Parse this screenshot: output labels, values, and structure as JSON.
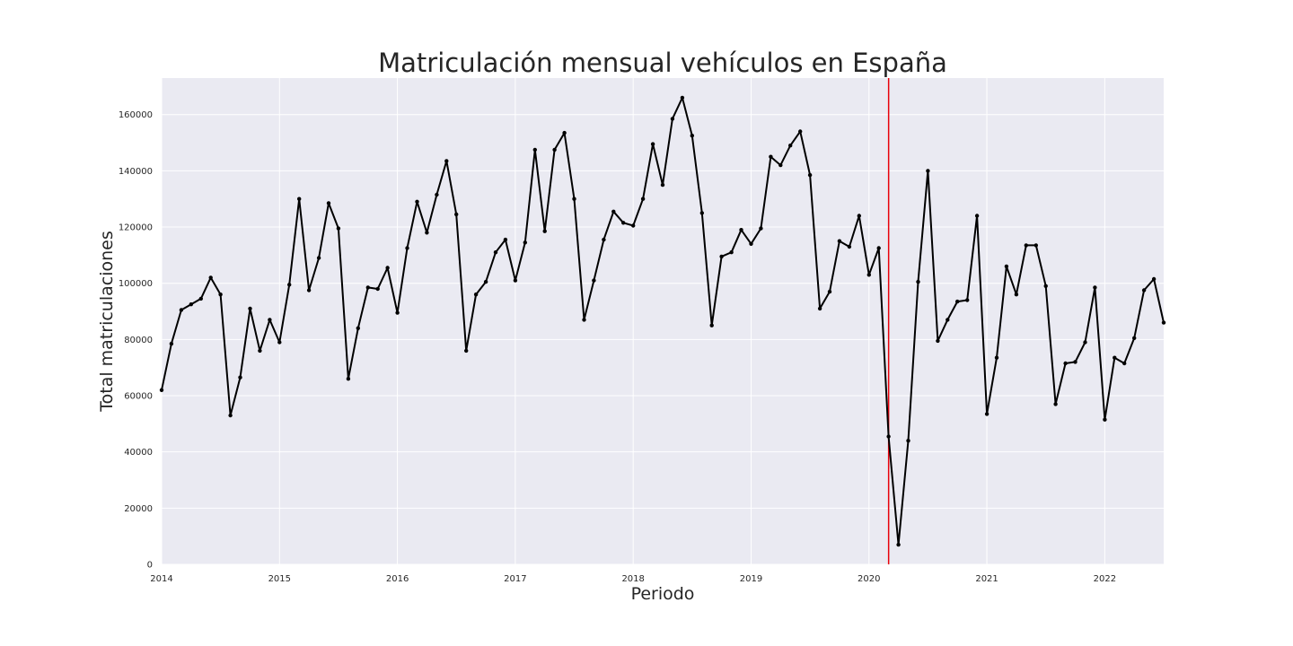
{
  "chart_data": {
    "type": "line",
    "title": "Matriculación mensual vehículos en España",
    "xlabel": "Periodo",
    "ylabel": "Total matriculaciones",
    "xlim": [
      "2014-01",
      "2022-07"
    ],
    "ylim": [
      0,
      173000
    ],
    "yticks": [
      0,
      20000,
      40000,
      60000,
      80000,
      100000,
      120000,
      140000,
      160000
    ],
    "ytick_labels": [
      "0",
      "20000",
      "40000",
      "60000",
      "80000",
      "100000",
      "120000",
      "140000",
      "160000"
    ],
    "xticks": [
      "2014",
      "2015",
      "2016",
      "2017",
      "2018",
      "2019",
      "2020",
      "2021",
      "2022"
    ],
    "grid": true,
    "background": "#eaeaf2",
    "grid_color": "#ffffff",
    "line_color": "#000000",
    "reference_line": {
      "x": "2020-03",
      "color": "#e8000b"
    },
    "series": [
      {
        "x": [
          "2014-01",
          "2014-02",
          "2014-03",
          "2014-04",
          "2014-05",
          "2014-06",
          "2014-07",
          "2014-08",
          "2014-09",
          "2014-10",
          "2014-11",
          "2014-12",
          "2015-01",
          "2015-02",
          "2015-03",
          "2015-04",
          "2015-05",
          "2015-06",
          "2015-07",
          "2015-08",
          "2015-09",
          "2015-10",
          "2015-11",
          "2015-12",
          "2016-01",
          "2016-02",
          "2016-03",
          "2016-04",
          "2016-05",
          "2016-06",
          "2016-07",
          "2016-08",
          "2016-09",
          "2016-10",
          "2016-11",
          "2016-12",
          "2017-01",
          "2017-02",
          "2017-03",
          "2017-04",
          "2017-05",
          "2017-06",
          "2017-07",
          "2017-08",
          "2017-09",
          "2017-10",
          "2017-11",
          "2017-12",
          "2018-01",
          "2018-02",
          "2018-03",
          "2018-04",
          "2018-05",
          "2018-06",
          "2018-07",
          "2018-08",
          "2018-09",
          "2018-10",
          "2018-11",
          "2018-12",
          "2019-01",
          "2019-02",
          "2019-03",
          "2019-04",
          "2019-05",
          "2019-06",
          "2019-07",
          "2019-08",
          "2019-09",
          "2019-10",
          "2019-11",
          "2019-12",
          "2020-01",
          "2020-02",
          "2020-03",
          "2020-04",
          "2020-05",
          "2020-06",
          "2020-07",
          "2020-08",
          "2020-09",
          "2020-10",
          "2020-11",
          "2020-12",
          "2021-01",
          "2021-02",
          "2021-03",
          "2021-04",
          "2021-05",
          "2021-06",
          "2021-07",
          "2021-08",
          "2021-09",
          "2021-10",
          "2021-11",
          "2021-12",
          "2022-01",
          "2022-02",
          "2022-03",
          "2022-04",
          "2022-05",
          "2022-06",
          "2022-07"
        ],
        "values": [
          62000,
          78500,
          90500,
          92500,
          94500,
          102000,
          96000,
          53000,
          66500,
          91000,
          76000,
          87000,
          79000,
          99500,
          130000,
          97500,
          109000,
          128500,
          119500,
          66000,
          84000,
          98500,
          98000,
          105500,
          89500,
          112500,
          129000,
          118000,
          131500,
          143500,
          124500,
          76000,
          96000,
          100500,
          111000,
          115500,
          101000,
          114500,
          147500,
          118500,
          147500,
          153500,
          130000,
          87000,
          101000,
          115500,
          125500,
          121500,
          120500,
          130000,
          149500,
          135000,
          158500,
          166000,
          152500,
          125000,
          85000,
          109500,
          111000,
          119000,
          114000,
          119500,
          145000,
          142000,
          149000,
          154000,
          138500,
          91000,
          97000,
          115000,
          113000,
          124000,
          103000,
          112500,
          45500,
          7000,
          44000,
          100500,
          140000,
          79500,
          87000,
          93500,
          94000,
          124000,
          53500,
          73500,
          106000,
          96000,
          113500,
          113500,
          99000,
          57000,
          71500,
          72000,
          79000,
          98500,
          51500,
          73500,
          71500,
          80500,
          97500,
          101500,
          86000
        ]
      }
    ]
  }
}
